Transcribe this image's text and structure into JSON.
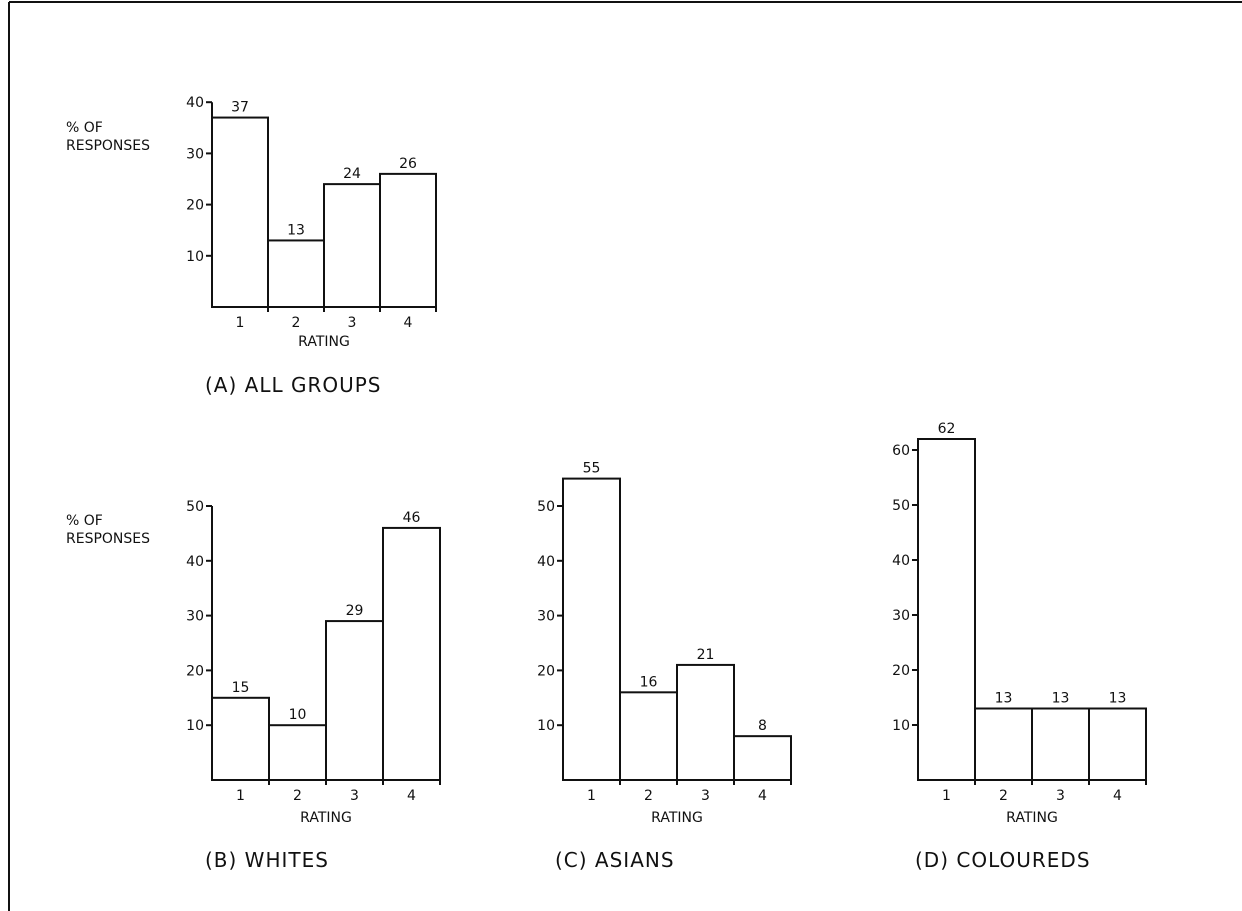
{
  "chart_data": [
    {
      "type": "bar",
      "title": "(A)  ALL GROUPS",
      "ylabel": "% OF RESPONSES",
      "xlabel": "RATING",
      "categories": [
        "1",
        "2",
        "3",
        "4"
      ],
      "values": [
        37,
        13,
        24,
        26
      ],
      "yticks": [
        10,
        20,
        30,
        40
      ],
      "ylim": [
        0,
        40
      ],
      "grid": false,
      "legend": "none"
    },
    {
      "type": "bar",
      "title": "(B)  WHITES",
      "ylabel": "% OF RESPONSES",
      "xlabel": "RATING",
      "categories": [
        "1",
        "2",
        "3",
        "4"
      ],
      "values": [
        15,
        10,
        29,
        46
      ],
      "yticks": [
        10,
        20,
        30,
        40,
        50
      ],
      "ylim": [
        0,
        50
      ],
      "grid": false,
      "legend": "none"
    },
    {
      "type": "bar",
      "title": "(C)  ASIANS",
      "ylabel": "",
      "xlabel": "RATING",
      "categories": [
        "1",
        "2",
        "3",
        "4"
      ],
      "values": [
        55,
        16,
        21,
        8
      ],
      "yticks": [
        10,
        20,
        30,
        40,
        50
      ],
      "ylim": [
        0,
        50
      ],
      "grid": false,
      "legend": "none"
    },
    {
      "type": "bar",
      "title": "(D)  COLOUREDS",
      "ylabel": "",
      "xlabel": "RATING",
      "categories": [
        "1",
        "2",
        "3",
        "4"
      ],
      "values": [
        62,
        13,
        13,
        13
      ],
      "yticks": [
        10,
        20,
        30,
        40,
        50,
        60
      ],
      "ylim": [
        0,
        60
      ],
      "grid": false,
      "legend": "none"
    }
  ]
}
